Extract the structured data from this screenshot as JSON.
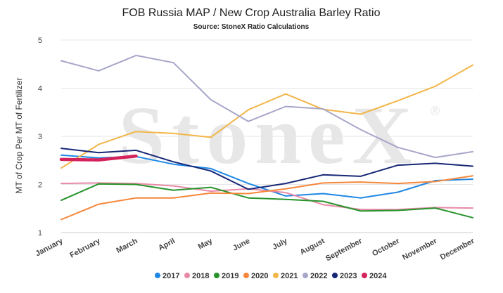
{
  "chart_data": {
    "type": "line",
    "title": "FOB Russia MAP / New Crop Australia Barley Ratio",
    "subtitle": "Source: StoneX Ratio Calculations",
    "ylabel": "MT of Crop Per MT of Fertilizer",
    "xlabel": "",
    "watermark": "StoneX",
    "watermark_mark": "®",
    "categories": [
      "January",
      "February",
      "March",
      "April",
      "May",
      "June",
      "July",
      "August",
      "September",
      "October",
      "November",
      "December"
    ],
    "ylim": [
      1,
      5
    ],
    "yticks": [
      "1",
      "2",
      "3",
      "4",
      "5"
    ],
    "grid": "horizontal",
    "legend_position": "bottom",
    "series": [
      {
        "name": "2017",
        "color": "#1e88e5",
        "values": [
          2.61,
          2.55,
          2.58,
          2.42,
          2.33,
          2.02,
          1.76,
          1.81,
          1.72,
          1.84,
          2.08,
          2.11
        ]
      },
      {
        "name": "2018",
        "color": "#e88aa6",
        "values": [
          2.02,
          2.03,
          2.02,
          1.97,
          1.86,
          1.91,
          1.83,
          1.58,
          1.48,
          1.48,
          1.52,
          1.51
        ]
      },
      {
        "name": "2019",
        "color": "#27932c",
        "values": [
          1.67,
          2.01,
          2.0,
          1.88,
          1.94,
          1.72,
          1.69,
          1.65,
          1.45,
          1.46,
          1.51,
          1.31
        ]
      },
      {
        "name": "2020",
        "color": "#f5873a",
        "values": [
          1.27,
          1.59,
          1.72,
          1.72,
          1.82,
          1.81,
          1.91,
          2.03,
          2.05,
          2.02,
          2.06,
          2.18
        ]
      },
      {
        "name": "2021",
        "color": "#f2b649",
        "values": [
          2.34,
          2.83,
          3.1,
          3.06,
          2.98,
          3.55,
          3.88,
          3.56,
          3.46,
          3.74,
          4.04,
          4.48
        ]
      },
      {
        "name": "2022",
        "color": "#a7a6c9",
        "values": [
          4.57,
          4.36,
          4.68,
          4.53,
          3.76,
          3.31,
          3.62,
          3.57,
          3.14,
          2.77,
          2.56,
          2.68
        ]
      },
      {
        "name": "2023",
        "color": "#172775",
        "values": [
          2.75,
          2.66,
          2.71,
          2.47,
          2.28,
          1.9,
          2.02,
          2.2,
          2.17,
          2.4,
          2.44,
          2.38
        ]
      },
      {
        "name": "2024",
        "color": "#d5225a",
        "values": [
          2.52,
          2.51,
          2.59,
          null,
          null,
          null,
          null,
          null,
          null,
          null,
          null,
          null
        ]
      }
    ]
  }
}
